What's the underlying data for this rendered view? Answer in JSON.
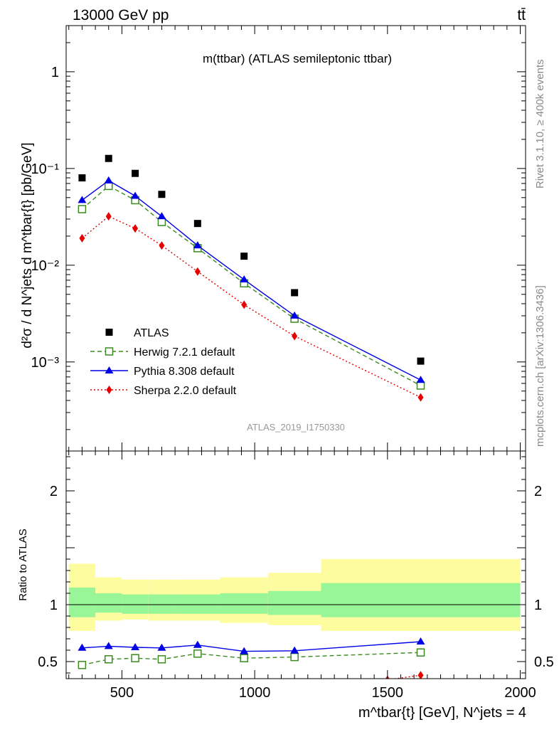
{
  "header": {
    "left": "13000 GeV pp",
    "right": "tt̄"
  },
  "side_labels": {
    "rivet": "Rivet 3.1.10, ≥ 400k events",
    "mcplots": "mcplots.cern.ch [arXiv:1306.3436]"
  },
  "chart_data": [
    {
      "type": "scatter",
      "panel": "main",
      "title": "m(ttbar) (ATLAS semileptonic ttbar)",
      "watermark": "ATLAS_2019_I1750330",
      "ylabel": "d²σ / d N^jets d m^tbar{t} [pb/GeV]",
      "yscale": "log",
      "xlim": [
        290,
        2020
      ],
      "ylim": [
        0.00012,
        3.0
      ],
      "y_ticks": [
        {
          "value": 1,
          "label": "1"
        },
        {
          "value": 0.1,
          "label": "10⁻¹"
        },
        {
          "value": 0.01,
          "label": "10⁻²"
        },
        {
          "value": 0.001,
          "label": "10⁻³"
        }
      ],
      "legend_position": "bottom-left",
      "series": [
        {
          "name": "ATLAS",
          "color": "#000000",
          "marker": "square-filled",
          "line": "none",
          "x": [
            350,
            450,
            550,
            650,
            785,
            960,
            1150,
            1625
          ],
          "y": [
            0.08,
            0.127,
            0.089,
            0.054,
            0.027,
            0.0124,
            0.0052,
            0.00102
          ]
        },
        {
          "name": "Herwig 7.2.1 default",
          "color": "#3a8a1f",
          "marker": "square-open",
          "line": "dashed",
          "x": [
            350,
            450,
            550,
            650,
            785,
            960,
            1150,
            1625
          ],
          "y": [
            0.038,
            0.066,
            0.047,
            0.028,
            0.015,
            0.0065,
            0.0028,
            0.00057
          ]
        },
        {
          "name": "Pythia 8.308 default",
          "color": "#0000e6",
          "marker": "triangle-filled",
          "line": "solid",
          "x": [
            350,
            450,
            550,
            650,
            785,
            960,
            1150,
            1625
          ],
          "y": [
            0.047,
            0.075,
            0.052,
            0.032,
            0.016,
            0.0071,
            0.003,
            0.00065
          ]
        },
        {
          "name": "Sherpa 2.2.0 default",
          "color": "#e60000",
          "marker": "diamond-filled",
          "line": "dotted",
          "x": [
            350,
            450,
            550,
            650,
            785,
            960,
            1150,
            1625
          ],
          "y": [
            0.019,
            0.032,
            0.024,
            0.016,
            0.0086,
            0.0039,
            0.00185,
            0.00043
          ]
        }
      ]
    },
    {
      "type": "scatter",
      "panel": "ratio",
      "ylabel": "Ratio to ATLAS",
      "xlabel": "m^tbar{t} [GeV], N^jets = 4",
      "xlim": [
        290,
        2020
      ],
      "ylim": [
        0.35,
        2.35
      ],
      "x_ticks": [
        500,
        1000,
        1500,
        2000
      ],
      "y_ticks": [
        0.5,
        1,
        2
      ],
      "reference_line": 1,
      "bands": {
        "edges": [
          300,
          400,
          500,
          600,
          700,
          870,
          1050,
          1250,
          2000
        ],
        "green_lo": [
          0.89,
          0.93,
          0.92,
          0.92,
          0.92,
          0.92,
          0.91,
          0.89
        ],
        "green_hi": [
          1.15,
          1.1,
          1.09,
          1.09,
          1.09,
          1.1,
          1.12,
          1.19
        ],
        "yellow_lo": [
          0.77,
          0.86,
          0.87,
          0.86,
          0.86,
          0.84,
          0.82,
          0.77
        ],
        "yellow_hi": [
          1.36,
          1.24,
          1.22,
          1.22,
          1.22,
          1.24,
          1.28,
          1.4
        ],
        "green_color": "#98f598",
        "yellow_color": "#fdfda0"
      },
      "series": [
        {
          "name": "Herwig 7.2.1 default",
          "color": "#3a8a1f",
          "marker": "square-open",
          "line": "dashed",
          "x": [
            350,
            450,
            550,
            650,
            785,
            960,
            1150,
            1625
          ],
          "y": [
            0.47,
            0.52,
            0.53,
            0.52,
            0.57,
            0.53,
            0.54,
            0.58
          ]
        },
        {
          "name": "Pythia 8.308 default",
          "color": "#0000e6",
          "marker": "triangle-filled",
          "line": "solid",
          "x": [
            350,
            450,
            550,
            650,
            785,
            960,
            1150,
            1625
          ],
          "y": [
            0.62,
            0.635,
            0.625,
            0.62,
            0.645,
            0.59,
            0.595,
            0.675
          ]
        },
        {
          "name": "Sherpa 2.2.0 default",
          "color": "#e60000",
          "marker": "diamond-filled",
          "line": "dotted",
          "x": [
            1500,
            1625
          ],
          "y": [
            0.34,
            0.38
          ]
        }
      ]
    }
  ]
}
